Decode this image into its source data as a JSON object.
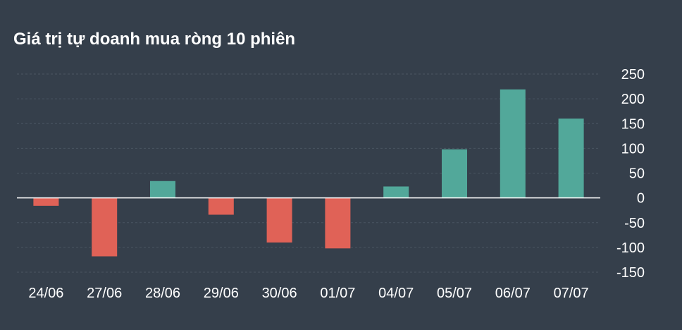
{
  "title": "Giá trị tự doanh mua ròng 10 phiên",
  "colors": {
    "background": "#353f4b",
    "positive": "#52a89a",
    "negative": "#e06257",
    "zero_line": "#ffffff",
    "grid": "#4a5562",
    "text": "#ffffff"
  },
  "chart_data": {
    "type": "bar",
    "title": "Giá trị tự doanh mua ròng 10 phiên",
    "categories": [
      "24/06",
      "27/06",
      "28/06",
      "29/06",
      "30/06",
      "01/07",
      "04/07",
      "05/07",
      "06/07",
      "07/07"
    ],
    "values": [
      -16,
      -118,
      34,
      -34,
      -90,
      -102,
      23,
      98,
      219,
      160
    ],
    "ylim": [
      -150,
      250
    ],
    "yticks": [
      250,
      200,
      150,
      100,
      50,
      0,
      -50,
      -100,
      -150
    ],
    "ytick_labels": [
      "250",
      "200",
      "150",
      "100",
      "50",
      "0",
      "-50",
      "-100",
      "-150"
    ],
    "xlabel": "",
    "ylabel": "",
    "grid": true,
    "y_axis_position": "right"
  }
}
